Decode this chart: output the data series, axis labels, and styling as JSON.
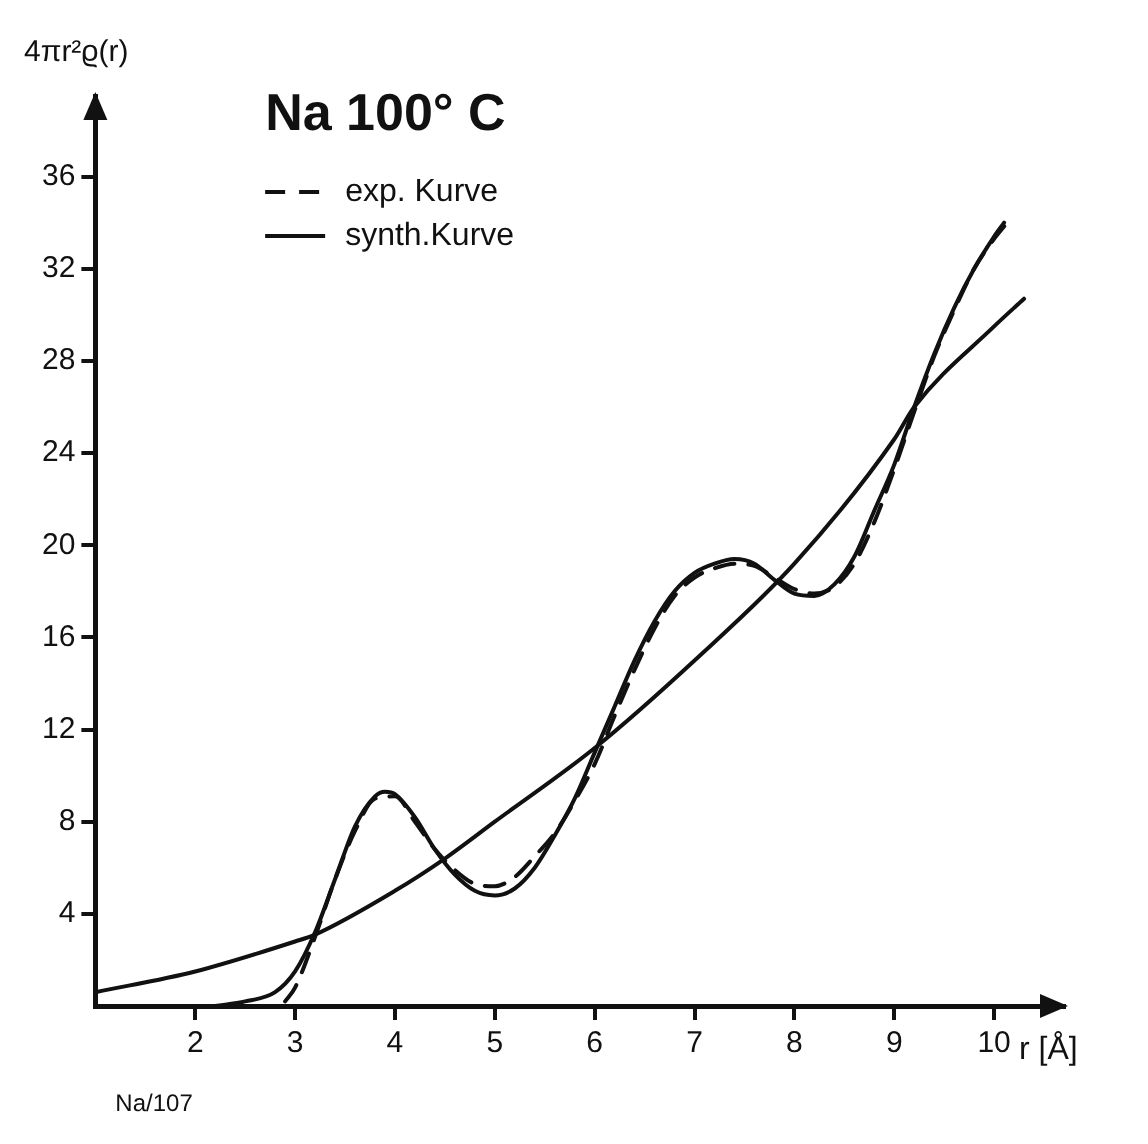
{
  "chart_data": {
    "type": "line",
    "title": "Na 100° C",
    "ylabel": "4πr²ϱ(r)",
    "xlabel": "r [Å]",
    "annotations": [
      "Na/107"
    ],
    "xlim": [
      1,
      10.7
    ],
    "xticks": [
      2,
      3,
      4,
      5,
      6,
      7,
      8,
      9,
      10
    ],
    "ylim": [
      0,
      39.5
    ],
    "yticks": [
      4,
      8,
      12,
      16,
      20,
      24,
      28,
      32,
      36
    ],
    "grid": false,
    "legend": "top left",
    "marker": "none",
    "series": [
      {
        "name": "exp. Kurve",
        "color": "#111111",
        "line_style": "dashed",
        "x": [
          2.9,
          3.0,
          3.2,
          3.4,
          3.6,
          3.8,
          4.0,
          4.2,
          4.4,
          4.6,
          4.8,
          5.0,
          5.2,
          5.4,
          5.6,
          5.8,
          6.0,
          6.2,
          6.4,
          6.6,
          6.8,
          7.0,
          7.2,
          7.4,
          7.6,
          7.8,
          8.0,
          8.2,
          8.4,
          8.6,
          8.8,
          9.0,
          9.2,
          9.4,
          9.6,
          9.8,
          10.0,
          10.15
        ],
        "values": [
          0.2,
          0.8,
          3.0,
          5.5,
          7.6,
          9.0,
          9.1,
          8.0,
          6.8,
          5.9,
          5.3,
          5.2,
          5.6,
          6.5,
          7.5,
          8.9,
          10.5,
          12.6,
          14.6,
          16.4,
          17.8,
          18.6,
          19.0,
          19.2,
          19.1,
          18.6,
          18.1,
          17.9,
          18.2,
          19.2,
          21.0,
          23.3,
          25.8,
          28.2,
          30.2,
          32.0,
          33.3,
          34.1
        ]
      },
      {
        "name": "synth.Kurve",
        "color": "#111111",
        "line_style": "solid",
        "x": [
          2.2,
          2.5,
          2.8,
          3.0,
          3.2,
          3.4,
          3.6,
          3.8,
          3.9,
          4.0,
          4.2,
          4.4,
          4.6,
          4.8,
          5.0,
          5.2,
          5.4,
          5.6,
          5.8,
          6.0,
          6.2,
          6.4,
          6.6,
          6.8,
          7.0,
          7.2,
          7.4,
          7.6,
          7.8,
          8.0,
          8.2,
          8.4,
          8.6,
          8.8,
          9.0,
          9.2,
          9.4,
          9.6,
          9.8,
          10.0,
          10.1
        ],
        "values": [
          0,
          0.2,
          0.6,
          1.5,
          3.2,
          5.5,
          7.8,
          9.1,
          9.3,
          9.2,
          8.2,
          6.8,
          5.7,
          5.0,
          4.8,
          5.1,
          6.0,
          7.4,
          9.0,
          11.0,
          13.0,
          15.0,
          16.7,
          18.0,
          18.8,
          19.2,
          19.4,
          19.2,
          18.5,
          17.9,
          17.8,
          18.3,
          19.5,
          21.5,
          23.5,
          26.0,
          28.3,
          30.3,
          32.0,
          33.4,
          34.0
        ]
      },
      {
        "color": "#111111",
        "line_style": "solid",
        "x": [
          1,
          2,
          3,
          3.2,
          4,
          4.5,
          5,
          6,
          7,
          8,
          9,
          9.2,
          10,
          10.3
        ],
        "values": [
          0.6,
          1.5,
          2.8,
          3.1,
          5.0,
          6.4,
          8.0,
          11.2,
          15.0,
          19.2,
          24.6,
          26.0,
          29.5,
          30.7
        ]
      }
    ]
  }
}
